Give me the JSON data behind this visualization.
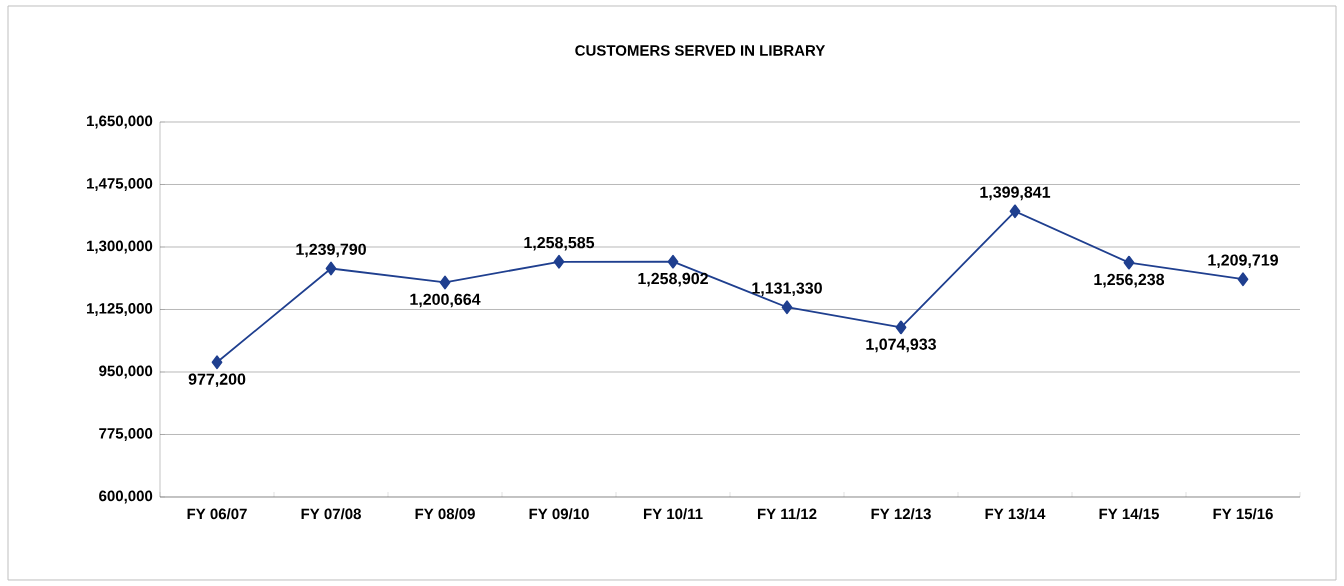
{
  "chart_data": {
    "type": "line",
    "title": "CUSTOMERS SERVED IN LIBRARY",
    "categories": [
      "FY 06/07",
      "FY 07/08",
      "FY 08/09",
      "FY 09/10",
      "FY 10/11",
      "FY 11/12",
      "FY 12/13",
      "FY 13/14",
      "FY 14/15",
      "FY 15/16"
    ],
    "series": [
      {
        "color": "#1f3f8f",
        "values": [
          977200,
          1239790,
          1200664,
          1258585,
          1258902,
          1131330,
          1074933,
          1399841,
          1256238,
          1209719
        ],
        "value_labels": [
          "977,200",
          "1,239,790",
          "1,200,664",
          "1,258,585",
          "1,258,902",
          "1,131,330",
          "1,074,933",
          "1,399,841",
          "1,256,238",
          "1,209,719"
        ]
      }
    ],
    "ylim": [
      600000,
      1650000
    ],
    "yticks": [
      {
        "value": 600000,
        "label": "600,000"
      },
      {
        "value": 775000,
        "label": "775,000"
      },
      {
        "value": 950000,
        "label": "950,000"
      },
      {
        "value": 1125000,
        "label": "1,125,000"
      },
      {
        "value": 1300000,
        "label": "1,300,000"
      },
      {
        "value": 1475000,
        "label": "1,475,000"
      },
      {
        "value": 1650000,
        "label": "1,650,000"
      }
    ],
    "grid": "y",
    "marker": "diamond",
    "line_style": "solid"
  }
}
